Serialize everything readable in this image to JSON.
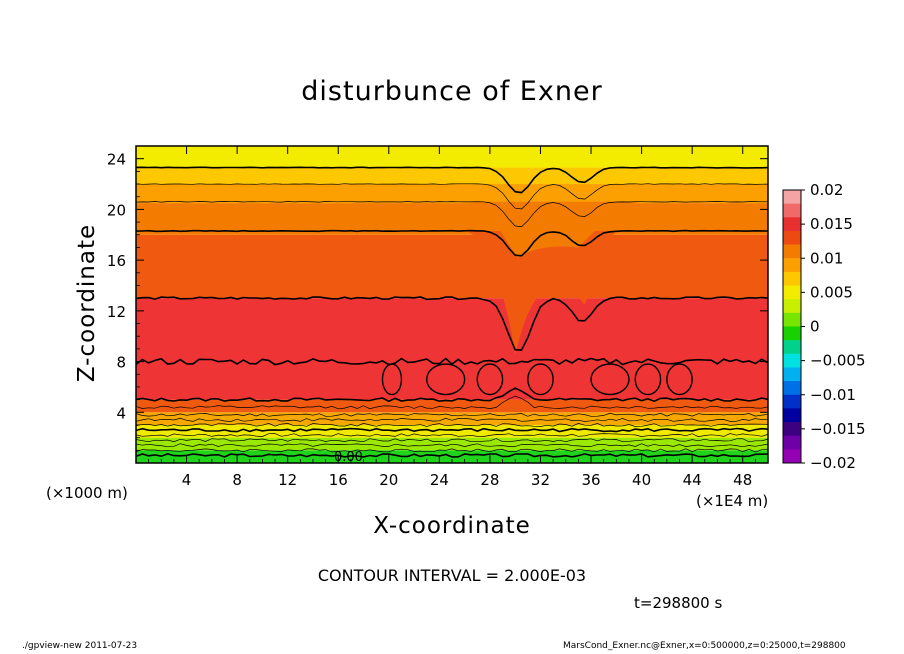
{
  "chart_data": {
    "type": "heatmap",
    "title": "disturbunce of Exner",
    "xlabel": "X-coordinate",
    "ylabel": "Z-coordinate",
    "x_unit_left": "(×1000 m)",
    "x_unit_right": "(×1E4 m)",
    "x_ticks": [
      "4",
      "8",
      "12",
      "16",
      "20",
      "24",
      "28",
      "32",
      "36",
      "40",
      "44",
      "48"
    ],
    "x_tick_values": [
      4,
      8,
      12,
      16,
      20,
      24,
      28,
      32,
      36,
      40,
      44,
      48
    ],
    "xlim": [
      0,
      50
    ],
    "y_ticks": [
      "4",
      "8",
      "12",
      "16",
      "20",
      "24"
    ],
    "y_tick_values": [
      4,
      8,
      12,
      16,
      20,
      24
    ],
    "ylim": [
      0,
      25
    ],
    "colorbar_labels": [
      "0.02",
      "0.015",
      "0.01",
      "0.005",
      "0",
      "−0.005",
      "−0.01",
      "−0.015",
      "−0.02"
    ],
    "colorbar_values": [
      0.02,
      0.015,
      0.01,
      0.005,
      0,
      -0.005,
      -0.01,
      -0.015,
      -0.02
    ],
    "colorbar_colors": [
      "#f4a4a4",
      "#f06a6a",
      "#e83030",
      "#ec4a10",
      "#f37c00",
      "#fba000",
      "#fdc800",
      "#f4ec00",
      "#c8ee00",
      "#78e600",
      "#19d000",
      "#00d28c",
      "#00e2e2",
      "#00b0f0",
      "#0070e6",
      "#0030c8",
      "#0000a0",
      "#3c0080",
      "#6e00a8",
      "#9400b4"
    ],
    "field_description_bands": [
      {
        "z": [
          0,
          1.0
        ],
        "color": "#20d41c"
      },
      {
        "z": [
          1.0,
          2.0
        ],
        "color": "#9be800"
      },
      {
        "z": [
          2.0,
          3.0
        ],
        "color": "#f0ea00"
      },
      {
        "z": [
          3.0,
          4.0
        ],
        "color": "#f7a800"
      },
      {
        "z": [
          4.0,
          5.0
        ],
        "color": "#f05a10"
      },
      {
        "z": [
          5.0,
          13.0
        ],
        "color": "#ee3434"
      },
      {
        "z": [
          13.0,
          18.0
        ],
        "color": "#f05a10"
      },
      {
        "z": [
          18.0,
          20.5
        ],
        "color": "#f37c00"
      },
      {
        "z": [
          20.5,
          22.0
        ],
        "color": "#fba000"
      },
      {
        "z": [
          22.0,
          23.3
        ],
        "color": "#fdc800"
      },
      {
        "z": [
          23.3,
          25.0
        ],
        "color": "#f4ec00"
      }
    ],
    "contour_label": "0.00",
    "contour_interval": "CONTOUR INTERVAL = 2.000E-03",
    "time": "t=298800 s"
  },
  "footer": {
    "left": "./gpview-new  2011-07-23",
    "right": "MarsCond_Exner.nc@Exner,x=0:500000,z=0:25000,t=298800"
  }
}
